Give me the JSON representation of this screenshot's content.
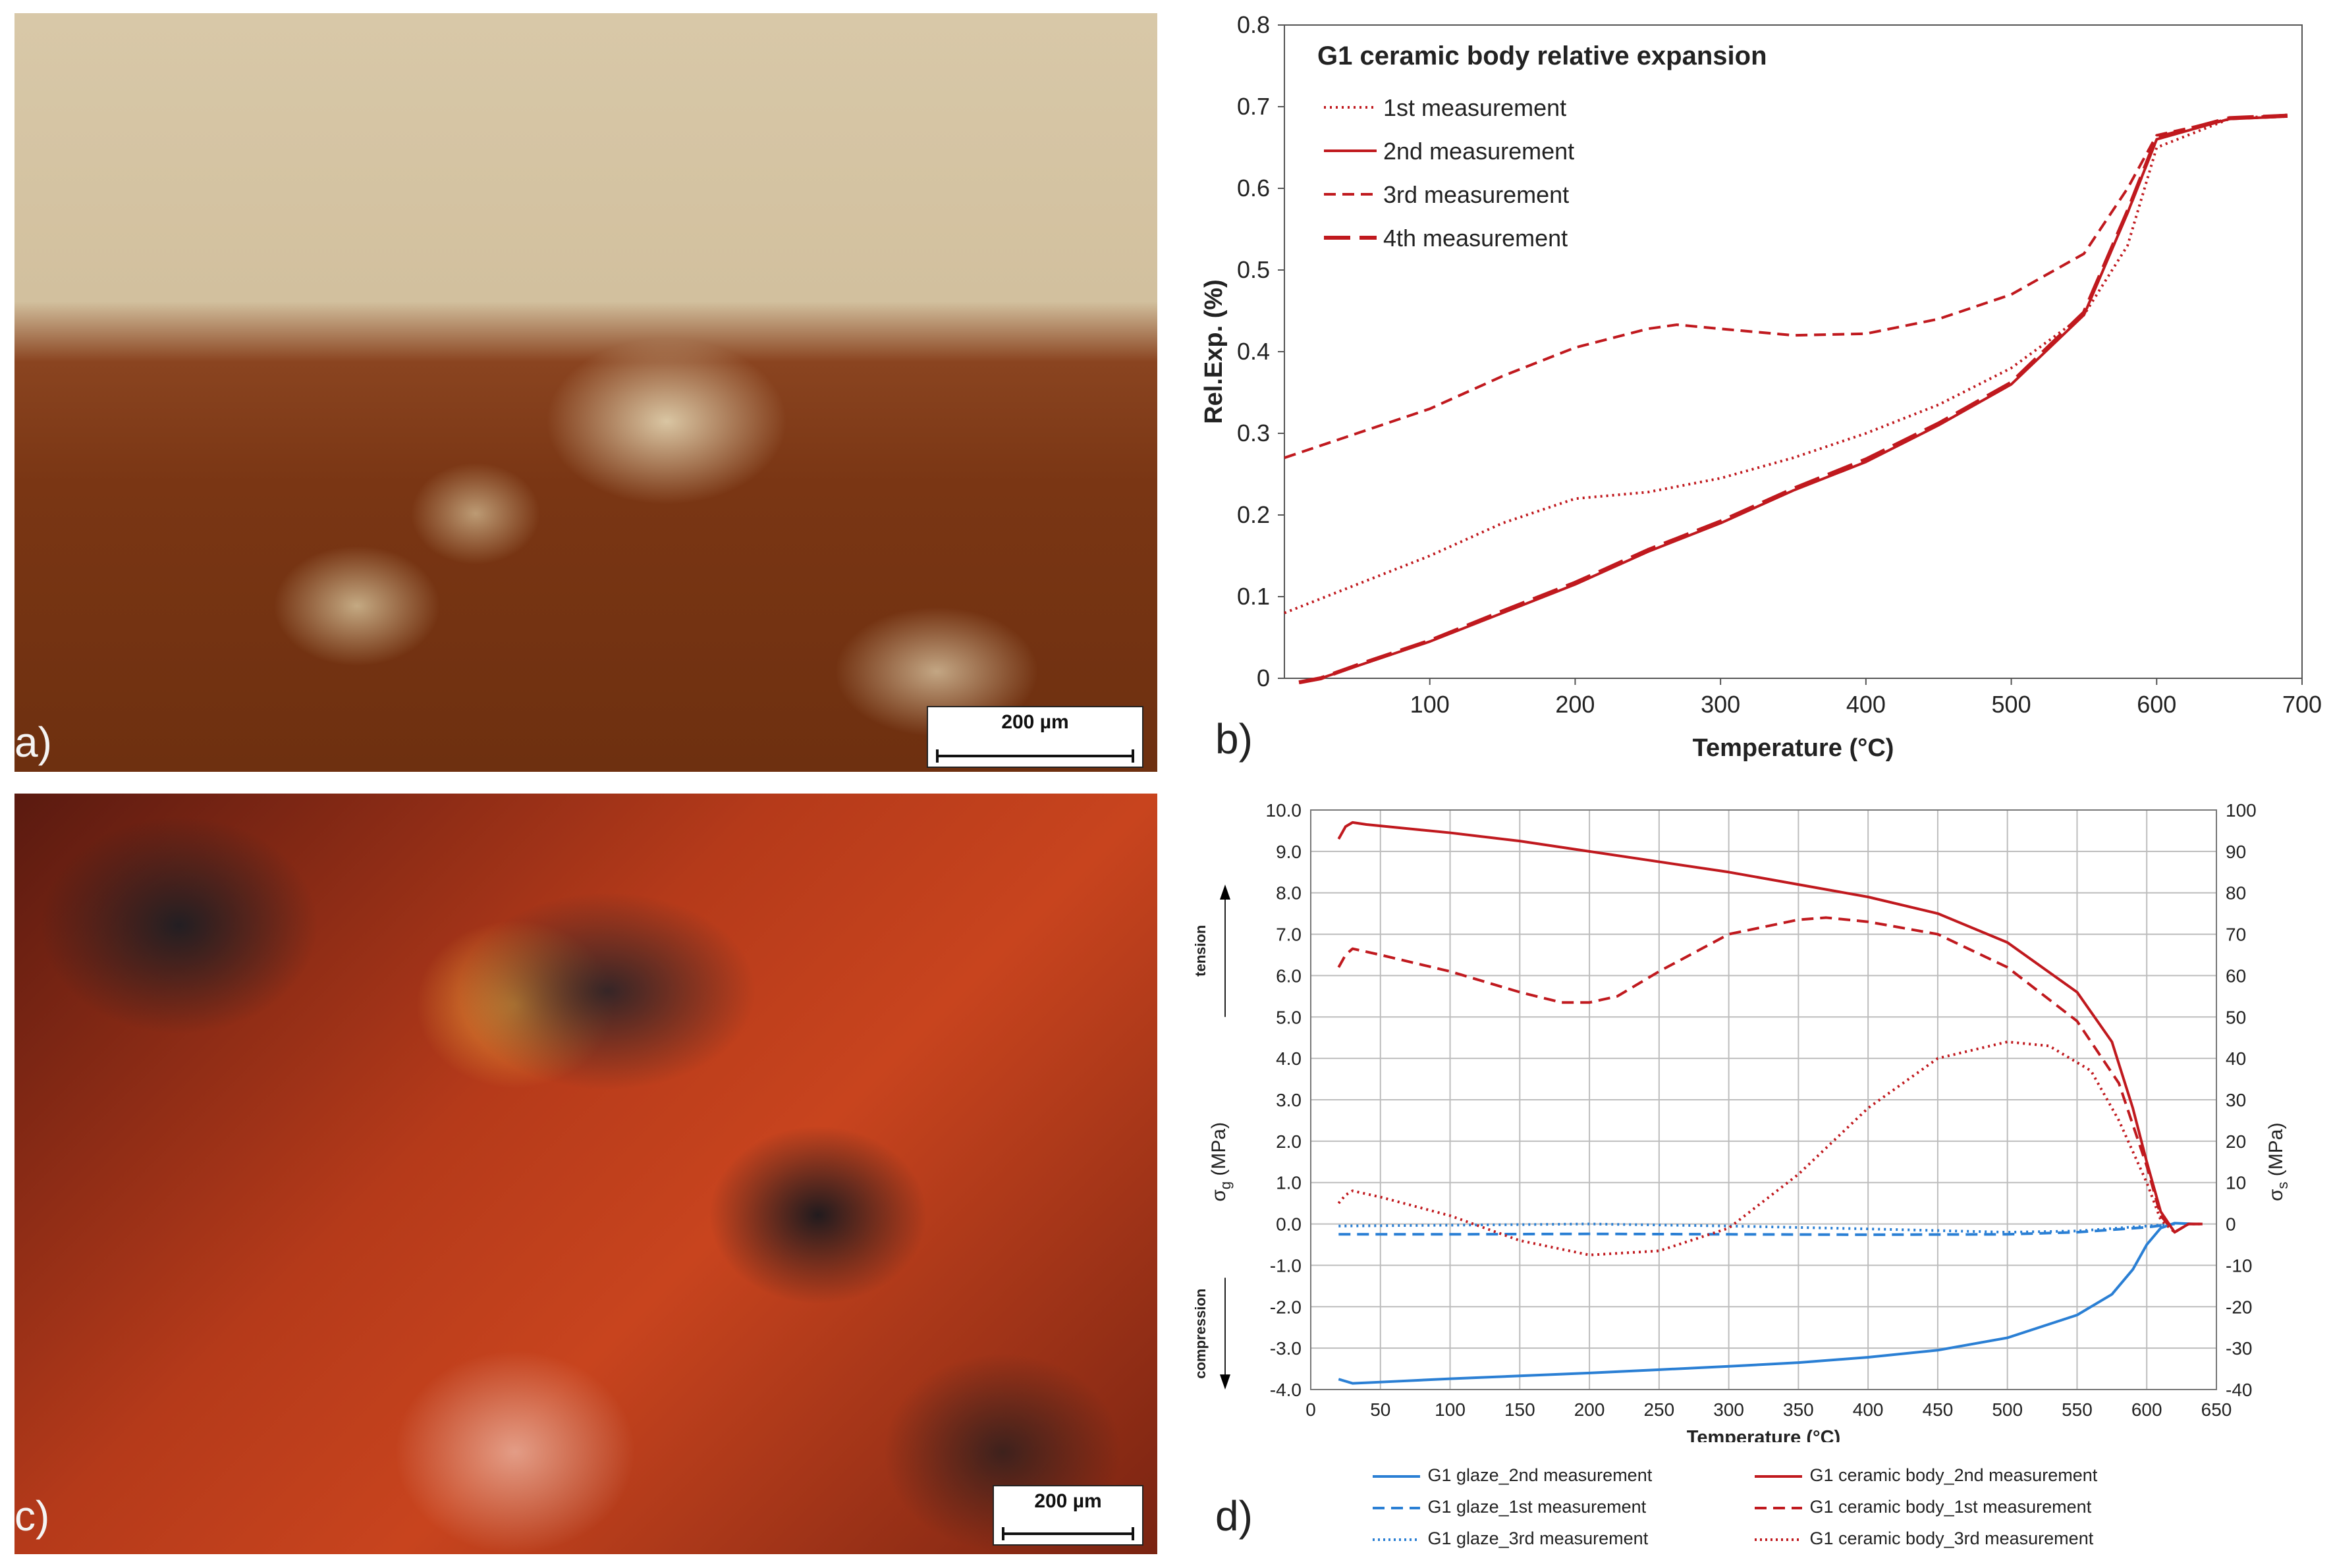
{
  "panels": {
    "a": {
      "letter": "a)",
      "scalebar": "200 µm"
    },
    "b": {
      "letter": "b)"
    },
    "c": {
      "letter": "c)",
      "scalebar": "200 µm"
    },
    "d": {
      "letter": "d)"
    }
  },
  "colors": {
    "red": "#c0191e",
    "blue": "#2a7fd4",
    "grid": "#bdbdbd"
  },
  "chart_data": [
    {
      "id": "b",
      "type": "line",
      "title": "G1 ceramic body relative expansion",
      "xlabel": "Temperature (°C)",
      "ylabel": "Rel.Exp. (%)",
      "xlim": [
        0,
        700
      ],
      "ylim": [
        0,
        0.8
      ],
      "xticks": [
        100,
        200,
        300,
        400,
        500,
        600,
        700
      ],
      "xtick_labels": [
        "100",
        "200",
        "300",
        "400",
        "500",
        "600",
        "700"
      ],
      "yticks": [
        0,
        0.1,
        0.2,
        0.3,
        0.4,
        0.5,
        0.6,
        0.7,
        0.8
      ],
      "ytick_labels": [
        "0",
        "0.1",
        "0.2",
        "0.3",
        "0.4",
        "0.5",
        "0.6",
        "0.7",
        "0.8"
      ],
      "grid": false,
      "legend_position": "top-left",
      "series": [
        {
          "name": "1st measurement",
          "style": "dotted",
          "color": "#c0191e",
          "x": [
            0,
            50,
            100,
            150,
            200,
            250,
            300,
            350,
            400,
            450,
            500,
            550,
            580,
            600,
            650,
            690
          ],
          "y": [
            0.08,
            0.115,
            0.15,
            0.19,
            0.22,
            0.228,
            0.245,
            0.27,
            0.3,
            0.335,
            0.38,
            0.445,
            0.53,
            0.65,
            0.685,
            0.69
          ]
        },
        {
          "name": "2nd measurement",
          "style": "solid",
          "color": "#c0191e",
          "x": [
            10,
            25,
            50,
            100,
            150,
            200,
            250,
            300,
            350,
            400,
            450,
            500,
            550,
            580,
            600,
            650,
            690
          ],
          "y": [
            -0.005,
            0.0,
            0.015,
            0.045,
            0.08,
            0.115,
            0.155,
            0.19,
            0.23,
            0.265,
            0.31,
            0.36,
            0.445,
            0.57,
            0.66,
            0.685,
            0.688
          ]
        },
        {
          "name": "3rd measurement",
          "style": "dashed",
          "color": "#c0191e",
          "x": [
            0,
            50,
            100,
            150,
            200,
            250,
            270,
            300,
            350,
            400,
            450,
            500,
            550,
            580,
            600,
            650,
            690
          ],
          "y": [
            0.27,
            0.3,
            0.33,
            0.37,
            0.405,
            0.428,
            0.433,
            0.428,
            0.42,
            0.422,
            0.44,
            0.47,
            0.52,
            0.6,
            0.665,
            0.685,
            0.688
          ]
        },
        {
          "name": "4th measurement",
          "style": "longdash",
          "color": "#c0191e",
          "x": [
            10,
            25,
            50,
            100,
            150,
            200,
            250,
            300,
            350,
            400,
            450,
            500,
            550,
            580,
            600,
            650,
            690
          ],
          "y": [
            -0.005,
            0.0,
            0.016,
            0.046,
            0.082,
            0.117,
            0.157,
            0.192,
            0.232,
            0.268,
            0.312,
            0.362,
            0.448,
            0.572,
            0.662,
            0.686,
            0.689
          ]
        }
      ]
    },
    {
      "id": "d",
      "type": "line",
      "xlabel": "Temperature (°C)",
      "ylabel": "σg (MPa)",
      "ylabel_main": "σ",
      "ylabel_sub": "g",
      "ylabel_unit": " (MPa)",
      "y2label_main": "σ",
      "y2label_sub": "s",
      "y2label_unit": " (MPa)",
      "xlim": [
        0,
        650
      ],
      "ylim": [
        -4.0,
        10.0
      ],
      "y2lim": [
        -40,
        100
      ],
      "xticks": [
        0,
        50,
        100,
        150,
        200,
        250,
        300,
        350,
        400,
        450,
        500,
        550,
        600,
        650
      ],
      "xtick_labels": [
        "0",
        "50",
        "100",
        "150",
        "200",
        "250",
        "300",
        "350",
        "400",
        "450",
        "500",
        "550",
        "600",
        "650"
      ],
      "yticks": [
        -4,
        -3,
        -2,
        -1,
        0,
        1,
        2,
        3,
        4,
        5,
        6,
        7,
        8,
        9,
        10
      ],
      "ytick_labels": [
        "-4.0",
        "-3.0",
        "-2.0",
        "-1.0",
        "0.0",
        "1.0",
        "2.0",
        "3.0",
        "4.0",
        "5.0",
        "6.0",
        "7.0",
        "8.0",
        "9.0",
        "10.0"
      ],
      "y2ticks": [
        -40,
        -30,
        -20,
        -10,
        0,
        10,
        20,
        30,
        40,
        50,
        60,
        70,
        80,
        90,
        100
      ],
      "y2tick_labels": [
        "-40",
        "-30",
        "-20",
        "-10",
        "0",
        "10",
        "20",
        "30",
        "40",
        "50",
        "60",
        "70",
        "80",
        "90",
        "100"
      ],
      "grid": true,
      "annotations": {
        "tension": "tension",
        "compression": "compression"
      },
      "series": [
        {
          "name": "G1 glaze_2nd measurement",
          "axis": "left",
          "style": "solid",
          "color": "#2a7fd4",
          "x": [
            20,
            30,
            50,
            100,
            150,
            200,
            250,
            300,
            350,
            400,
            450,
            500,
            550,
            575,
            590,
            600,
            610,
            620,
            635
          ],
          "y": [
            -3.75,
            -3.85,
            -3.82,
            -3.74,
            -3.67,
            -3.6,
            -3.52,
            -3.44,
            -3.35,
            -3.22,
            -3.05,
            -2.75,
            -2.2,
            -1.7,
            -1.1,
            -0.5,
            -0.1,
            0.02,
            0.0
          ]
        },
        {
          "name": "G1 glaze_1st measurement",
          "axis": "left",
          "style": "dashed",
          "color": "#2a7fd4",
          "x": [
            20,
            100,
            200,
            300,
            400,
            500,
            550,
            600,
            620
          ],
          "y": [
            -0.25,
            -0.25,
            -0.24,
            -0.25,
            -0.26,
            -0.25,
            -0.2,
            -0.08,
            0.0
          ]
        },
        {
          "name": "G1 glaze_3rd measurement",
          "axis": "left",
          "style": "dotted",
          "color": "#2a7fd4",
          "x": [
            20,
            100,
            200,
            300,
            400,
            500,
            550,
            600,
            620
          ],
          "y": [
            -0.05,
            -0.03,
            0.0,
            -0.05,
            -0.12,
            -0.2,
            -0.17,
            -0.05,
            0.0
          ]
        },
        {
          "name": "G1 ceramic body_2nd measurement",
          "axis": "right",
          "style": "solid",
          "color": "#c0191e",
          "x": [
            20,
            25,
            30,
            40,
            100,
            150,
            200,
            250,
            300,
            350,
            400,
            450,
            500,
            550,
            575,
            590,
            600,
            610,
            620,
            630,
            640
          ],
          "y": [
            93,
            96,
            97,
            96.5,
            94.5,
            92.5,
            90,
            87.5,
            85,
            82,
            79,
            75,
            68,
            56,
            44,
            28,
            15,
            3,
            -2,
            0,
            0
          ]
        },
        {
          "name": "G1 ceramic body_1st measurement",
          "axis": "right",
          "style": "dashed",
          "color": "#c0191e",
          "x": [
            20,
            25,
            30,
            50,
            100,
            150,
            180,
            200,
            220,
            250,
            300,
            350,
            370,
            400,
            450,
            500,
            550,
            580,
            600,
            610,
            620,
            630,
            640
          ],
          "y": [
            62,
            65,
            66.5,
            65,
            61,
            56,
            53.5,
            53.5,
            55,
            61,
            70,
            73.5,
            74,
            73,
            70,
            62,
            49,
            34,
            14,
            2,
            -2,
            0,
            0
          ]
        },
        {
          "name": "G1 ceramic body_3rd measurement",
          "axis": "right",
          "style": "dotted",
          "color": "#c0191e",
          "x": [
            20,
            25,
            30,
            50,
            100,
            150,
            200,
            250,
            300,
            350,
            400,
            450,
            500,
            530,
            560,
            580,
            600,
            610,
            620,
            630,
            640
          ],
          "y": [
            5,
            7,
            8,
            6.5,
            2,
            -4,
            -7.5,
            -6.5,
            -1,
            12,
            28,
            40,
            44,
            43,
            37,
            25,
            10,
            1,
            -2,
            0,
            0
          ]
        }
      ]
    }
  ]
}
